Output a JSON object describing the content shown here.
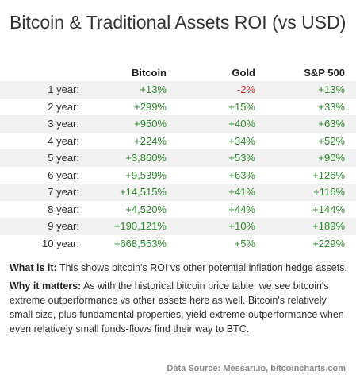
{
  "title": "Bitcoin & Traditional Assets ROI (vs USD)",
  "table": {
    "headers": [
      "",
      "Bitcoin",
      "Gold",
      "S&P 500"
    ],
    "rows": [
      {
        "label": "1 year:",
        "btc": "+13%",
        "gold": "-2%",
        "sp": "+13%"
      },
      {
        "label": "2 year:",
        "btc": "+299%",
        "gold": "+15%",
        "sp": "+33%"
      },
      {
        "label": "3 year:",
        "btc": "+950%",
        "gold": "+40%",
        "sp": "+63%"
      },
      {
        "label": "4 year:",
        "btc": "+224%",
        "gold": "+34%",
        "sp": "+52%"
      },
      {
        "label": "5 year:",
        "btc": "+3,860%",
        "gold": "+53%",
        "sp": "+90%"
      },
      {
        "label": "6 year:",
        "btc": "+9,539%",
        "gold": "+63%",
        "sp": "+126%"
      },
      {
        "label": "7 year:",
        "btc": "+14,515%",
        "gold": "+41%",
        "sp": "+116%"
      },
      {
        "label": "8 year:",
        "btc": "+4,520%",
        "gold": "+44%",
        "sp": "+144%"
      },
      {
        "label": "9 year:",
        "btc": "+190,121%",
        "gold": "+10%",
        "sp": "+189%"
      },
      {
        "label": "10 year:",
        "btc": "+668,553%",
        "gold": "+5%",
        "sp": "+229%"
      }
    ]
  },
  "notes": {
    "what_label": "What is it:",
    "what_text": " This shows bitcoin's ROI vs other potential inflation hedge assets.",
    "why_label": "Why it matters:",
    "why_text": " As with the historical bitcoin price table, we see bitcoin's extreme outperformance vs other assets here as well. Bitcoin's relatively small size, plus fundamental properties, yield extreme outperformance when even relatively small funds-flows find their way to BTC."
  },
  "source": "Data Source: Messari.io, bitcoincharts.com",
  "colors": {
    "positive": "#2e8b2e",
    "negative": "#d22c2c",
    "stripe": "#f2f2f2"
  }
}
